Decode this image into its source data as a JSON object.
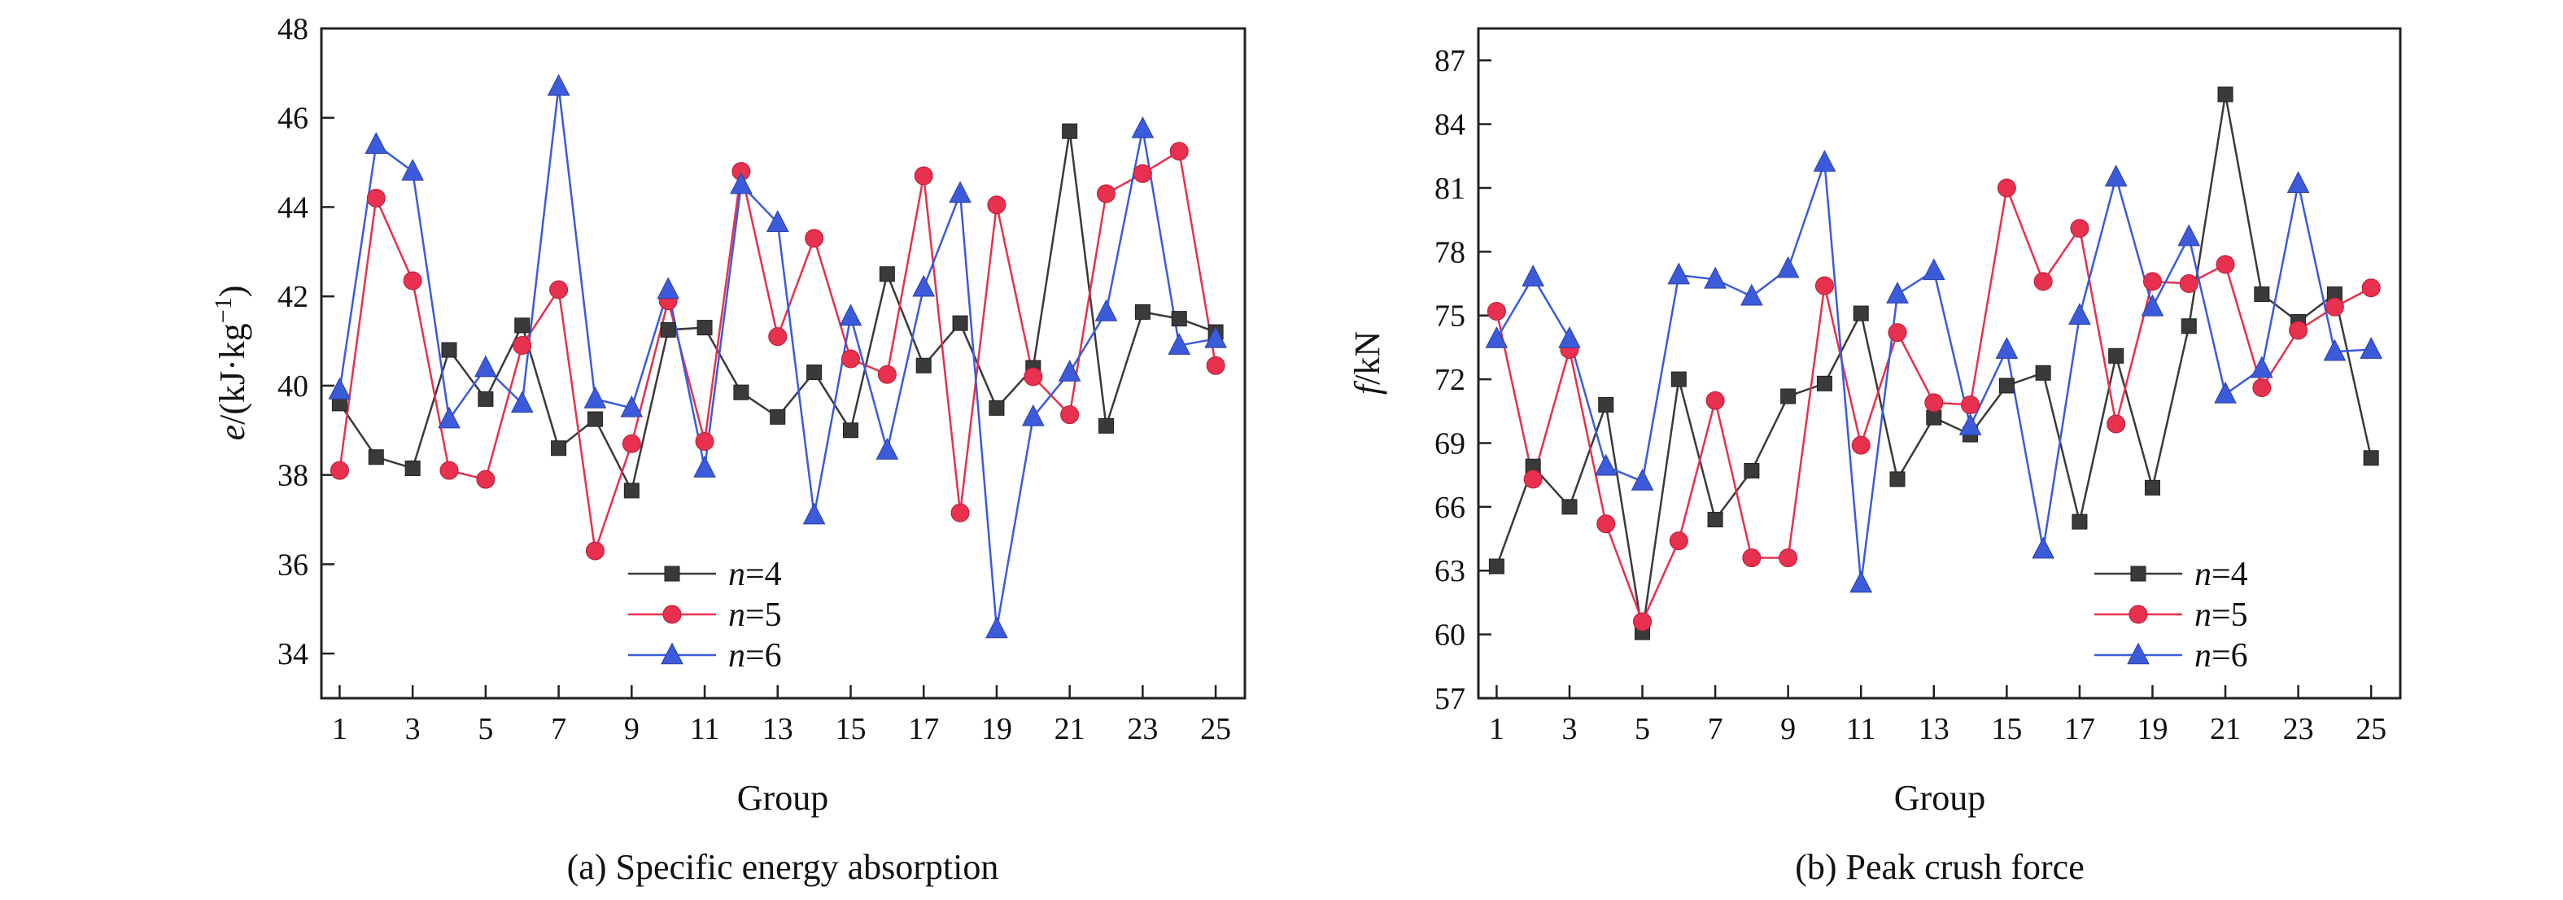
{
  "chart_data": [
    {
      "type": "line",
      "caption": "(a) Specific energy absorption",
      "xlabel": "Group",
      "ylabel": {
        "var": "e",
        "unit": "/(kJ·kg",
        "sup": "−1",
        "close": ")"
      },
      "xlim": [
        0.5,
        25.8
      ],
      "ylim": [
        33,
        48
      ],
      "xticks": [
        1,
        3,
        5,
        7,
        9,
        11,
        13,
        15,
        17,
        19,
        21,
        23,
        25
      ],
      "yticks": [
        34,
        36,
        38,
        40,
        42,
        44,
        46,
        48
      ],
      "legend_position": "lower-center",
      "x": [
        1,
        2,
        3,
        4,
        5,
        6,
        7,
        8,
        9,
        10,
        11,
        12,
        13,
        14,
        15,
        16,
        17,
        18,
        19,
        20,
        21,
        22,
        23,
        24,
        25
      ],
      "series": [
        {
          "name": {
            "var": "n",
            "val": "=4"
          },
          "marker": "square",
          "color": "#3a3a3a",
          "values": [
            39.6,
            38.4,
            38.15,
            40.8,
            39.7,
            41.35,
            38.6,
            39.25,
            37.65,
            41.25,
            41.3,
            39.85,
            39.3,
            40.3,
            39.0,
            42.5,
            40.45,
            41.4,
            39.5,
            40.4,
            45.7,
            39.1,
            41.65,
            41.5,
            41.2
          ]
        },
        {
          "name": {
            "var": "n",
            "val": "=5"
          },
          "marker": "circle",
          "color": "#e8304f",
          "values": [
            38.1,
            44.2,
            42.35,
            38.1,
            37.9,
            40.9,
            42.15,
            36.3,
            38.7,
            41.9,
            38.75,
            44.8,
            41.1,
            43.3,
            40.6,
            40.25,
            44.7,
            37.15,
            44.05,
            40.2,
            39.35,
            44.3,
            44.75,
            45.25,
            40.45
          ]
        },
        {
          "name": {
            "var": "n",
            "val": "=6"
          },
          "marker": "triangle",
          "color": "#3b5bdb",
          "values": [
            39.9,
            45.4,
            44.8,
            39.25,
            40.4,
            39.6,
            46.7,
            39.7,
            39.5,
            42.15,
            38.15,
            44.5,
            43.65,
            37.1,
            41.55,
            38.55,
            42.2,
            44.3,
            34.55,
            39.3,
            40.3,
            41.65,
            45.75,
            40.9,
            41.05
          ]
        }
      ]
    },
    {
      "type": "line",
      "caption": "(b) Peak crush force",
      "xlabel": "Group",
      "ylabel": {
        "var": "f",
        "unit": "/kN"
      },
      "xlim": [
        0.5,
        25.8
      ],
      "ylim": [
        57,
        88.5
      ],
      "xticks": [
        1,
        3,
        5,
        7,
        9,
        11,
        13,
        15,
        17,
        19,
        21,
        23,
        25
      ],
      "yticks": [
        57,
        60,
        63,
        66,
        69,
        72,
        75,
        78,
        81,
        84,
        87
      ],
      "legend_position": "lower-right",
      "x": [
        1,
        2,
        3,
        4,
        5,
        6,
        7,
        8,
        9,
        10,
        11,
        12,
        13,
        14,
        15,
        16,
        17,
        18,
        19,
        20,
        21,
        22,
        23,
        24,
        25
      ],
      "series": [
        {
          "name": {
            "var": "n",
            "val": "=4"
          },
          "marker": "square",
          "color": "#3a3a3a",
          "values": [
            63.2,
            67.9,
            66.0,
            70.8,
            60.1,
            72.0,
            65.4,
            67.7,
            71.2,
            71.8,
            75.1,
            67.3,
            70.2,
            69.4,
            71.7,
            72.3,
            65.3,
            73.1,
            66.9,
            74.5,
            85.4,
            76.0,
            74.7,
            76.0,
            68.3
          ]
        },
        {
          "name": {
            "var": "n",
            "val": "=5"
          },
          "marker": "circle",
          "color": "#e8304f",
          "values": [
            75.2,
            67.3,
            73.4,
            65.2,
            60.6,
            64.4,
            71.0,
            63.6,
            63.6,
            76.4,
            68.9,
            74.2,
            70.9,
            70.8,
            81.0,
            76.6,
            79.1,
            69.9,
            76.6,
            76.5,
            77.4,
            71.6,
            74.3,
            75.4,
            76.3
          ]
        },
        {
          "name": {
            "var": "n",
            "val": "=6"
          },
          "marker": "triangle",
          "color": "#3b5bdb",
          "values": [
            73.9,
            76.8,
            73.9,
            67.9,
            67.2,
            76.9,
            76.7,
            75.9,
            77.2,
            82.2,
            62.4,
            76.0,
            77.1,
            69.8,
            73.4,
            64.0,
            75.0,
            81.5,
            75.4,
            78.7,
            71.3,
            72.5,
            81.2,
            73.3,
            73.4
          ]
        }
      ]
    }
  ]
}
